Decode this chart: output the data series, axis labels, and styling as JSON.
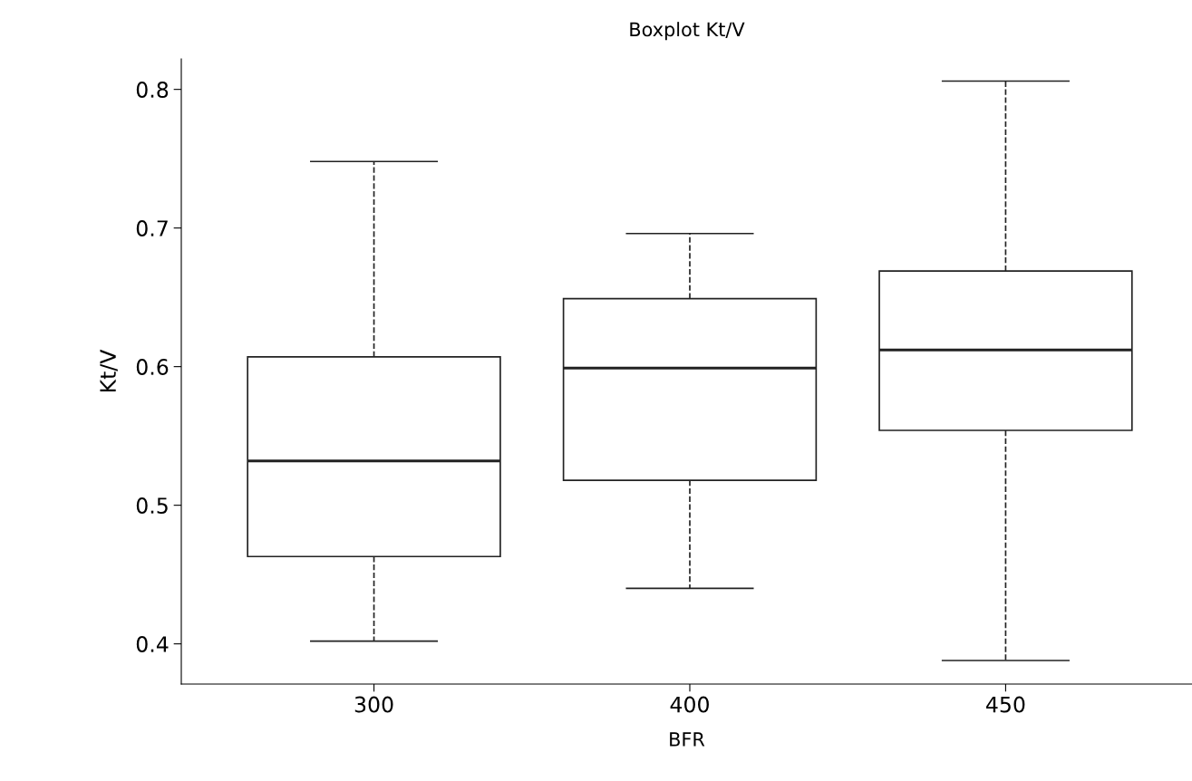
{
  "chart_data": {
    "type": "box",
    "title": "Boxplot Kt/V",
    "xlabel": "BFR",
    "ylabel": "Kt/V",
    "categories": [
      "300",
      "400",
      "450"
    ],
    "boxes": [
      {
        "low": 0.402,
        "q1": 0.463,
        "median": 0.532,
        "q3": 0.607,
        "high": 0.748
      },
      {
        "low": 0.44,
        "q1": 0.518,
        "median": 0.599,
        "q3": 0.649,
        "high": 0.696
      },
      {
        "low": 0.388,
        "q1": 0.554,
        "median": 0.612,
        "q3": 0.669,
        "high": 0.806
      }
    ],
    "color": "#ffffff",
    "line_style": "dashed",
    "ylim": [
      0.371,
      0.822
    ],
    "yticks": [
      0.4,
      0.5,
      0.6,
      0.7,
      0.8
    ],
    "grid": false
  }
}
